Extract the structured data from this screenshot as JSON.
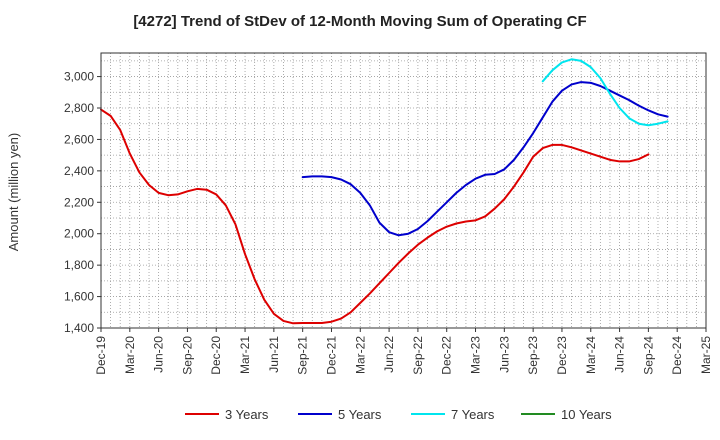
{
  "chart_data": {
    "type": "line",
    "title": "[4272]  Trend of StDev of 12-Month Moving Sum of Operating CF",
    "ylabel": "Amount (million yen)",
    "xlabel": "",
    "ylim": [
      1400,
      3150
    ],
    "yticks": [
      1400,
      1600,
      1800,
      2000,
      2200,
      2400,
      2600,
      2800,
      3000
    ],
    "ytick_labels": [
      "1,400",
      "1,600",
      "1,800",
      "2,000",
      "2,200",
      "2,400",
      "2,600",
      "2,800",
      "3,000"
    ],
    "x_start": "Dec-19",
    "x_count": 64,
    "xtick_labels": [
      "Dec-19",
      "Mar-20",
      "Jun-20",
      "Sep-20",
      "Dec-20",
      "Mar-21",
      "Jun-21",
      "Sep-21",
      "Dec-21",
      "Mar-22",
      "Jun-22",
      "Sep-22",
      "Dec-22",
      "Mar-23",
      "Jun-23",
      "Sep-23",
      "Dec-23",
      "Mar-24",
      "Jun-24",
      "Sep-24",
      "Dec-24",
      "Mar-25"
    ],
    "grid": true,
    "legend_position": "bottom",
    "series": [
      {
        "name": "3 Years",
        "color": "#dd0000",
        "start_index": 0,
        "values": [
          2790,
          2750,
          2660,
          2510,
          2390,
          2310,
          2260,
          2245,
          2250,
          2270,
          2285,
          2280,
          2250,
          2180,
          2060,
          1870,
          1710,
          1580,
          1490,
          1445,
          1430,
          1432,
          1432,
          1432,
          1440,
          1460,
          1500,
          1560,
          1620,
          1685,
          1750,
          1815,
          1875,
          1930,
          1975,
          2015,
          2045,
          2065,
          2078,
          2085,
          2110,
          2160,
          2220,
          2300,
          2390,
          2490,
          2545,
          2565,
          2565,
          2550,
          2530,
          2510,
          2490,
          2470,
          2460,
          2460,
          2475,
          2505
        ]
      },
      {
        "name": "5 Years",
        "color": "#0000cc",
        "start_index": 21,
        "values": [
          2360,
          2365,
          2365,
          2360,
          2345,
          2315,
          2260,
          2180,
          2070,
          2010,
          1990,
          2000,
          2030,
          2080,
          2140,
          2200,
          2260,
          2310,
          2350,
          2375,
          2380,
          2410,
          2470,
          2550,
          2640,
          2740,
          2840,
          2910,
          2950,
          2965,
          2960,
          2940,
          2910,
          2880,
          2850,
          2815,
          2785,
          2760,
          2745
        ]
      },
      {
        "name": "7 Years",
        "color": "#00e5ee",
        "start_index": 46,
        "values": [
          2970,
          3040,
          3090,
          3110,
          3100,
          3060,
          2990,
          2890,
          2800,
          2735,
          2700,
          2690,
          2700,
          2715
        ]
      },
      {
        "name": "10 Years",
        "color": "#228b22",
        "start_index": 0,
        "values": []
      }
    ]
  }
}
